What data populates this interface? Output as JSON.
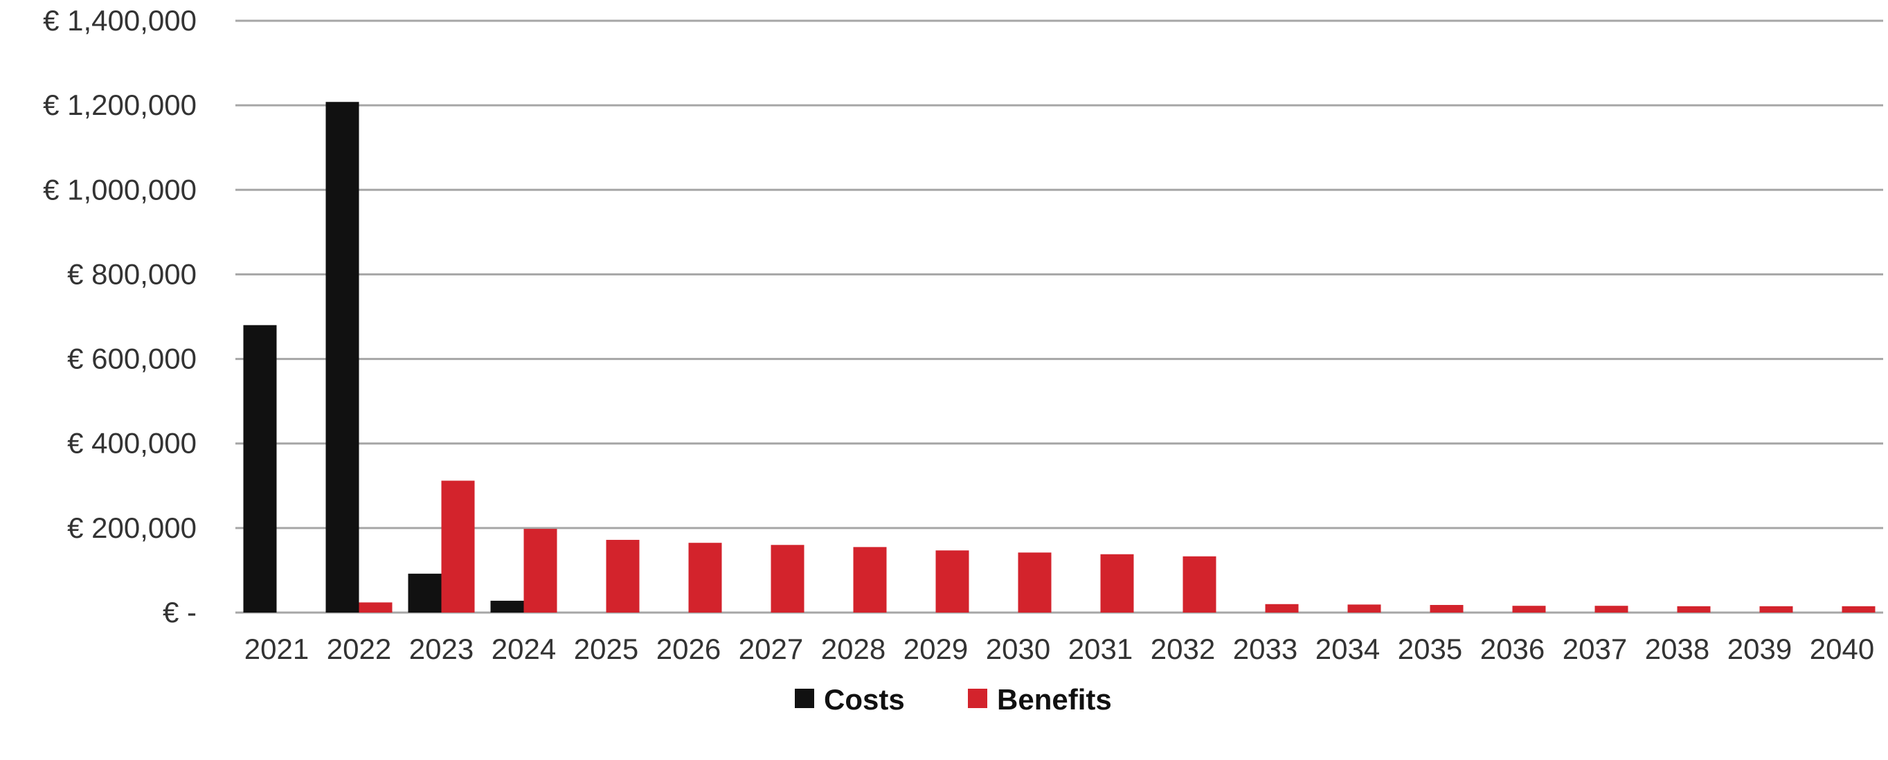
{
  "chart_data": {
    "type": "bar",
    "categories": [
      "2021",
      "2022",
      "2023",
      "2024",
      "2025",
      "2026",
      "2027",
      "2028",
      "2029",
      "2030",
      "2031",
      "2032",
      "2033",
      "2034",
      "2035",
      "2036",
      "2037",
      "2038",
      "2039",
      "2040"
    ],
    "series": [
      {
        "name": "Costs",
        "color": "#111111",
        "values": [
          680000,
          1208000,
          92000,
          28000,
          0,
          0,
          0,
          0,
          0,
          0,
          0,
          0,
          0,
          0,
          0,
          0,
          0,
          0,
          0,
          0
        ]
      },
      {
        "name": "Benefits",
        "color": "#d3232c",
        "values": [
          0,
          24000,
          312000,
          198000,
          172000,
          165000,
          160000,
          155000,
          147000,
          142000,
          138000,
          133000,
          20000,
          19000,
          18000,
          16000,
          16000,
          15000,
          15000,
          15000
        ]
      }
    ],
    "y_ticks": [
      0,
      200000,
      400000,
      600000,
      800000,
      1000000,
      1200000,
      1400000
    ],
    "y_tick_labels": [
      "€ -",
      "€ 200,000",
      "€ 400,000",
      "€ 600,000",
      "€ 800,000",
      "€ 1,000,000",
      "€ 1,200,000",
      "€ 1,400,000"
    ],
    "ylim": [
      0,
      1400000
    ],
    "title": "",
    "xlabel": "",
    "ylabel": "",
    "grid": true,
    "legend_position": "bottom-center",
    "gridline_color": "#a6a6a6"
  }
}
